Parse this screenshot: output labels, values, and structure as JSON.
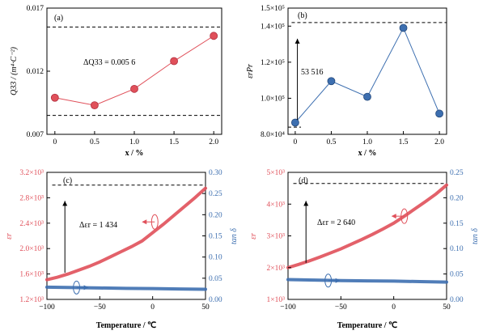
{
  "chart_data": [
    {
      "type": "line",
      "panel_label": "(a)",
      "x": [
        0,
        0.5,
        1.0,
        1.5,
        2.0
      ],
      "x_tick_labels": [
        "0",
        "0.5",
        "1.0",
        "1.5",
        "2.0"
      ],
      "xlim": [
        -0.1,
        2.1
      ],
      "xlabel": "x / %",
      "ylabel": "Q33 / (m⁴·C⁻²)",
      "ylim": [
        0.007,
        0.017
      ],
      "y_tick_labels": [
        "0.007",
        "0.012",
        "0.017"
      ],
      "y_ticks": [
        0.007,
        0.012,
        0.017
      ],
      "series": [
        {
          "values": [
            0.0099,
            0.0093,
            0.0106,
            0.0128,
            0.0148
          ],
          "color": "#e0505a"
        }
      ],
      "reference_lines": [
        0.0155,
        0.0085
      ],
      "annotation": "ΔQ33 = 0.005 6"
    },
    {
      "type": "line",
      "panel_label": "(b)",
      "x": [
        0,
        0.5,
        1.0,
        1.5,
        2.0
      ],
      "x_tick_labels": [
        "0",
        "0.5",
        "1.0",
        "1.5",
        "2.0"
      ],
      "xlim": [
        -0.1,
        2.1
      ],
      "xlabel": "x / %",
      "ylabel": "εrPr",
      "ylim": [
        80000,
        150000
      ],
      "y_ticks": [
        80000,
        100000,
        120000,
        140000,
        150000
      ],
      "y_tick_labels": [
        "8.0×10⁴",
        "1.0×10⁵",
        "1.2×10⁵",
        "1.4×10⁵",
        "1.5×10⁵"
      ],
      "series": [
        {
          "values": [
            86500,
            109500,
            100800,
            139000,
            91500
          ],
          "color": "#3d6fb0"
        }
      ],
      "reference_lines": [
        142000,
        84000
      ],
      "annotation": "53 516"
    },
    {
      "type": "line",
      "panel_label": "(c)",
      "xlim": [
        -100,
        50
      ],
      "x_ticks": [
        -100,
        -50,
        0,
        50
      ],
      "x_tick_labels": [
        "−100",
        "−50",
        "0",
        "50"
      ],
      "xlabel": "Temperature / ℃",
      "ylabel": "εr",
      "ylim": [
        1200,
        3200
      ],
      "y_ticks": [
        1200,
        1600,
        2000,
        2400,
        2800,
        3200
      ],
      "y_tick_labels": [
        "1.2×10³",
        "1.6×10³",
        "2.0×10³",
        "2.4×10³",
        "2.8×10³",
        "3.2×10³"
      ],
      "y2label": "tan δ",
      "y2lim": [
        0,
        0.3
      ],
      "y2_ticks": [
        0,
        0.05,
        0.1,
        0.15,
        0.2,
        0.25,
        0.3
      ],
      "y2_tick_labels": [
        "0.00",
        "0.05",
        "0.10",
        "0.15",
        "0.20",
        "0.25",
        "0.30"
      ],
      "series": [
        {
          "axis": "left",
          "color": "#e0505a",
          "x": [
            -100,
            -90,
            -80,
            -70,
            -60,
            -50,
            -40,
            -30,
            -20,
            -10,
            0,
            10,
            20,
            30,
            40,
            50
          ],
          "values": [
            1510,
            1550,
            1600,
            1660,
            1720,
            1790,
            1870,
            1950,
            2030,
            2120,
            2250,
            2380,
            2520,
            2660,
            2800,
            2950
          ]
        },
        {
          "axis": "right",
          "color": "#3d6fb0",
          "x": [
            -100,
            -75,
            -50,
            -25,
            0,
            25,
            50
          ],
          "values": [
            0.029,
            0.028,
            0.027,
            0.026,
            0.0255,
            0.0245,
            0.024
          ]
        }
      ],
      "reference_line": 3000,
      "annotation": "Δεr = 1 434"
    },
    {
      "type": "line",
      "panel_label": "(d)",
      "xlim": [
        -100,
        50
      ],
      "x_ticks": [
        -100,
        -50,
        0,
        50
      ],
      "x_tick_labels": [
        "−100",
        "−50",
        "0",
        "50"
      ],
      "xlabel": "Temperature / ℃",
      "ylabel": "εr",
      "ylim": [
        1000,
        5000
      ],
      "y_ticks": [
        1000,
        2000,
        3000,
        4000,
        5000
      ],
      "y_tick_labels": [
        "1×10³",
        "2×10³",
        "3×10³",
        "4×10³",
        "5×10³"
      ],
      "y2label": "tan δ",
      "y2lim": [
        0,
        0.25
      ],
      "y2_ticks": [
        0,
        0.05,
        0.1,
        0.15,
        0.2,
        0.25
      ],
      "y2_tick_labels": [
        "0.00",
        "0.05",
        "0.10",
        "0.15",
        "0.20",
        "0.25"
      ],
      "series": [
        {
          "axis": "left",
          "color": "#e0505a",
          "x": [
            -100,
            -90,
            -80,
            -70,
            -60,
            -50,
            -40,
            -30,
            -20,
            -10,
            0,
            10,
            20,
            30,
            40,
            50
          ],
          "values": [
            2000,
            2100,
            2210,
            2330,
            2460,
            2590,
            2740,
            2890,
            3050,
            3220,
            3400,
            3620,
            3850,
            4080,
            4320,
            4600
          ]
        },
        {
          "axis": "right",
          "color": "#3d6fb0",
          "x": [
            -100,
            -75,
            -50,
            -25,
            0,
            25,
            50
          ],
          "values": [
            0.039,
            0.038,
            0.037,
            0.0365,
            0.036,
            0.035,
            0.034
          ]
        }
      ],
      "reference_line": 4650,
      "annotation": "Δεr = 2 640"
    }
  ]
}
